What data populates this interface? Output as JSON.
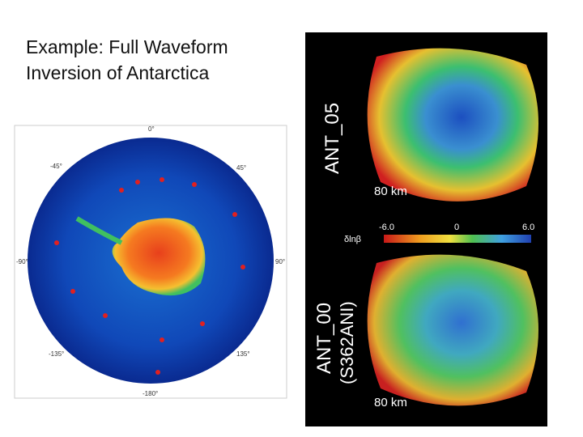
{
  "title": [
    "Example:  Full Waveform",
    "Inversion of Antarctica"
  ],
  "map_labels": [
    "0°",
    "-45°",
    "45°",
    "-90°",
    "90°",
    "-135°",
    "135°",
    "-180°"
  ],
  "panels": [
    {
      "label": "ANT_05",
      "depth": "80 km"
    },
    {
      "label": "ANT_00",
      "sublabel": "(S362ANI)",
      "depth": "80 km"
    }
  ],
  "colorbar": {
    "ticks": [
      "-6.0",
      "0",
      "6.0"
    ],
    "label": "δlnβ"
  }
}
